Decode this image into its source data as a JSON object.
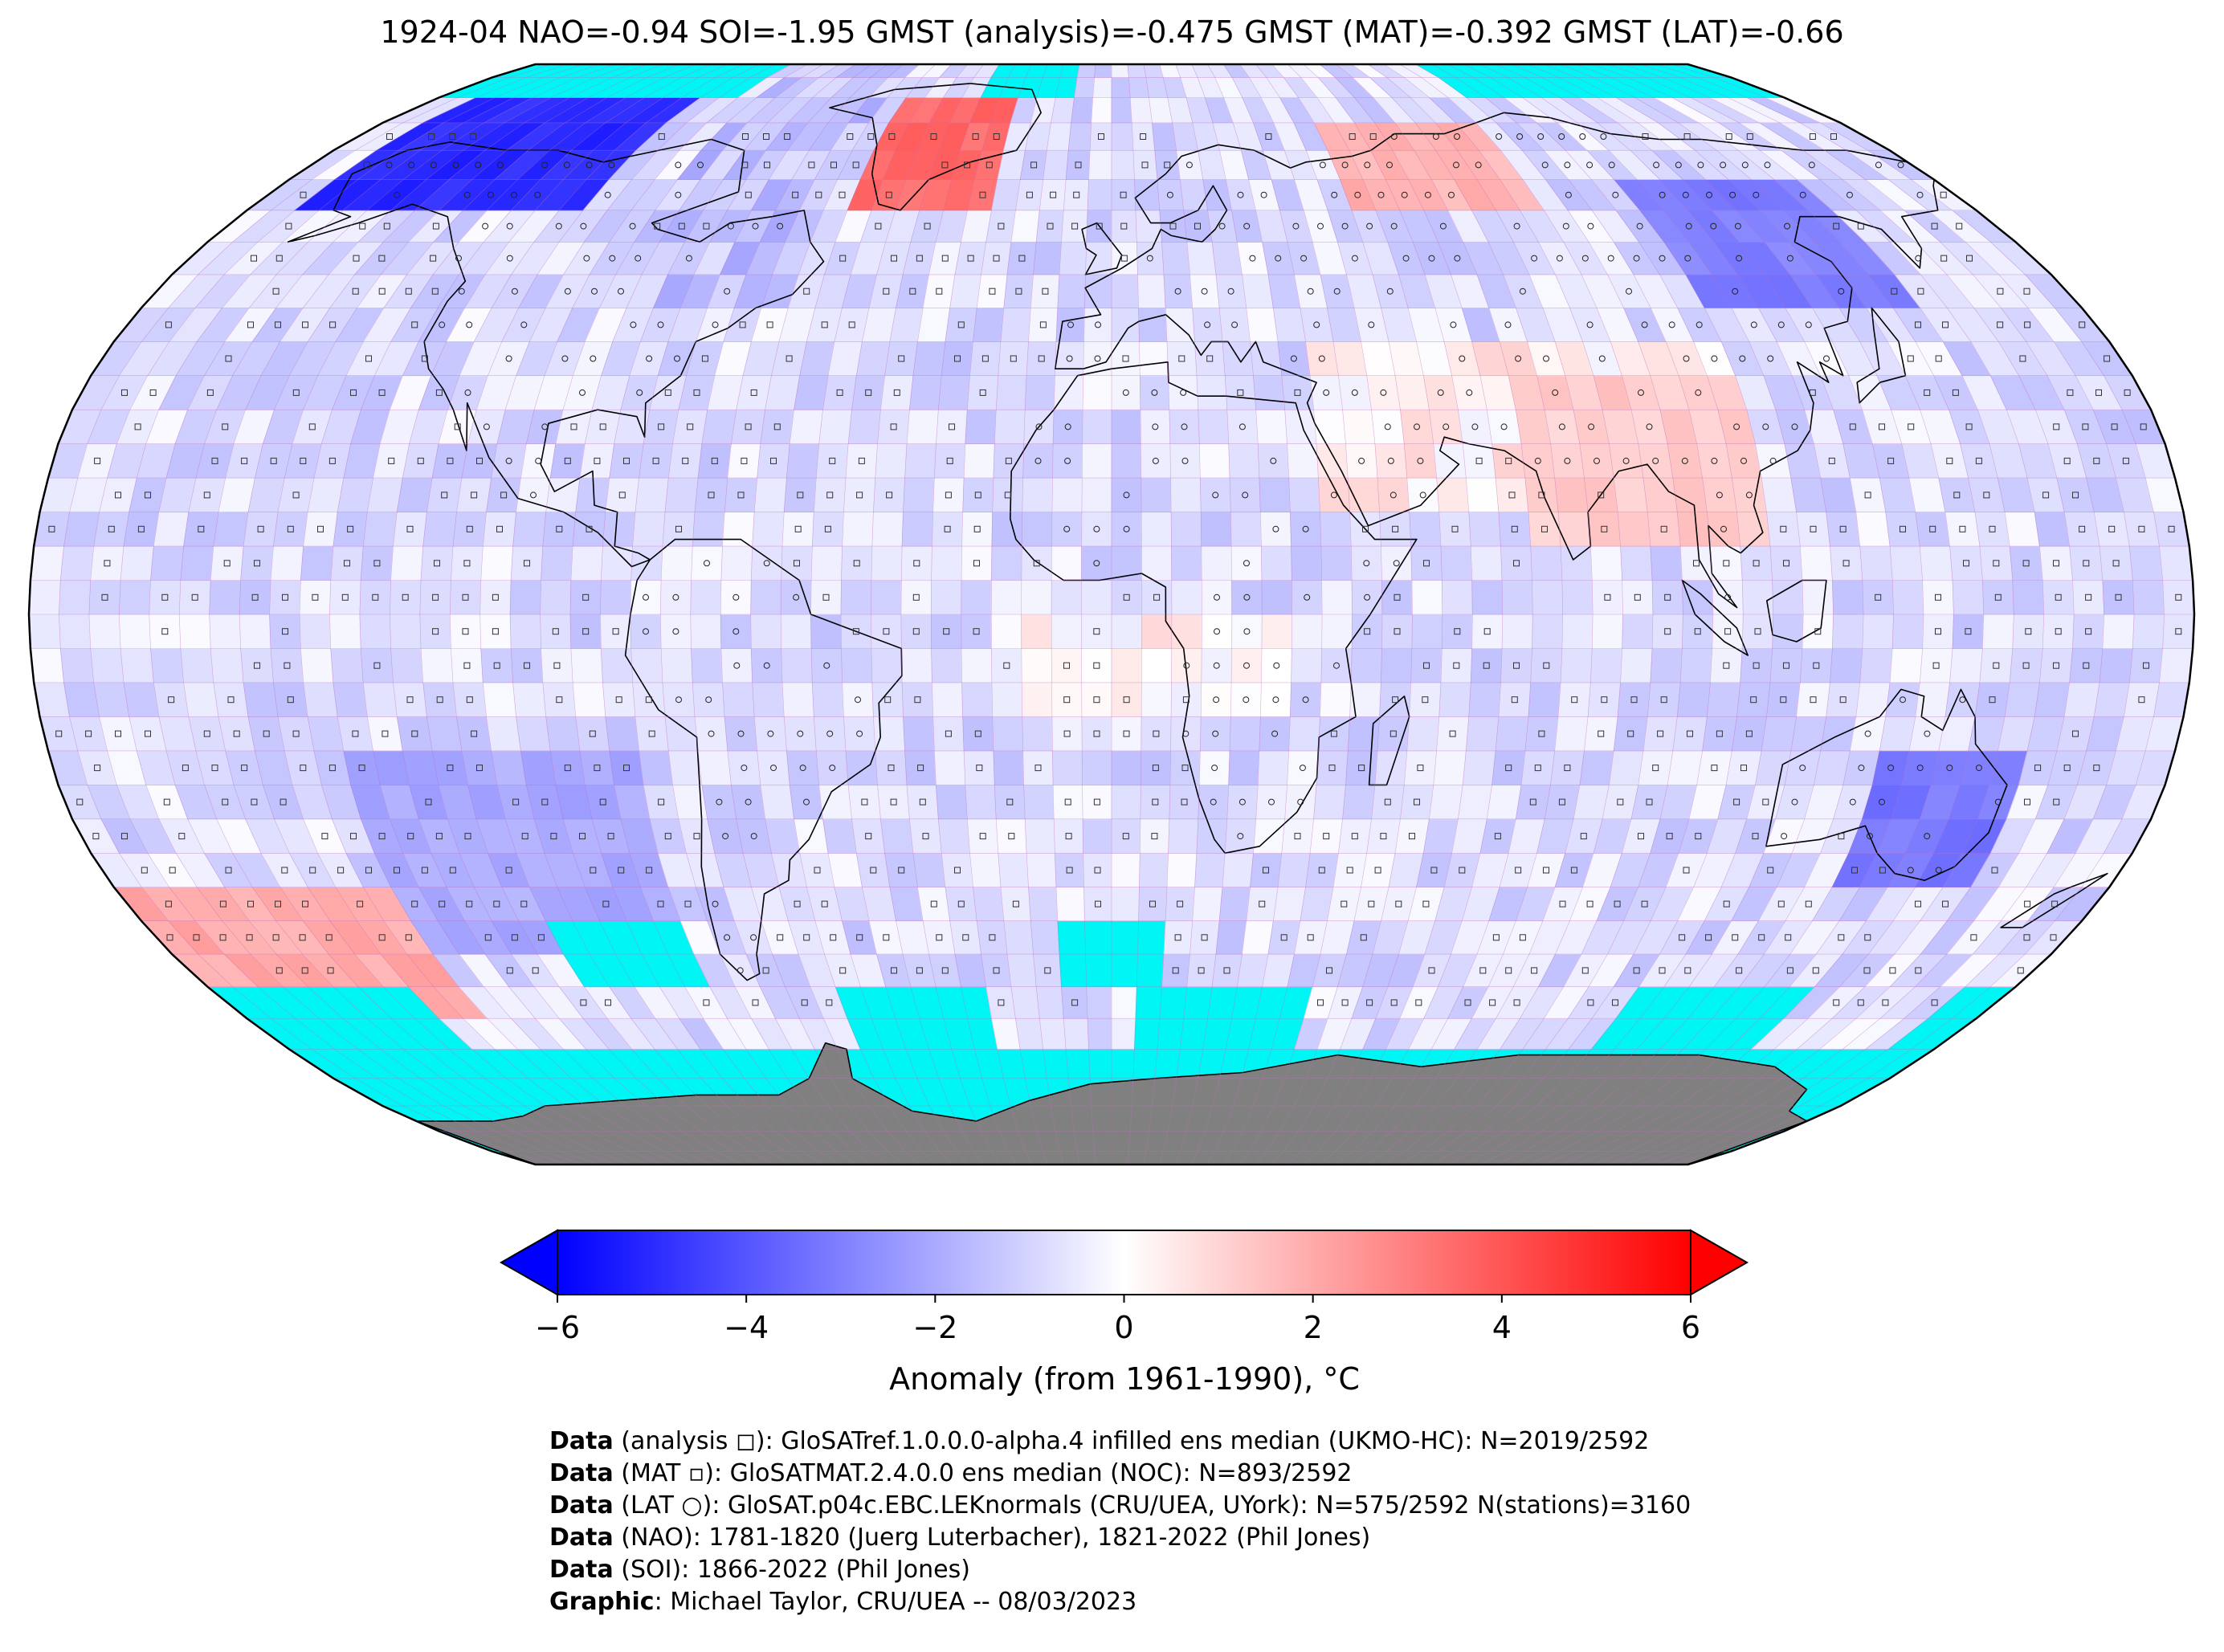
{
  "title": "1924-04 NAO=-0.94 SOI=-1.95 GMST (analysis)=-0.475 GMST (MAT)=-0.392 GMST (LAT)=-0.66",
  "colors": {
    "ocean_missing": "#00f5f5",
    "antarctica": "#808080",
    "grid_line": "#c070c0",
    "coast_line": "#000000",
    "cmap_min": "#0000ff",
    "cmap_mid": "#ffffff",
    "cmap_max": "#ff0000"
  },
  "colorbar": {
    "label": "Anomaly (from 1961-1990), °C",
    "ticks": [
      "−6",
      "−4",
      "−2",
      "0",
      "2",
      "4",
      "6"
    ],
    "tick_values": [
      -6,
      -4,
      -2,
      0,
      2,
      4,
      6
    ],
    "range": [
      -6,
      6
    ],
    "extend": "both"
  },
  "map": {
    "projection": "Robinson",
    "grid_resolution_deg": 5,
    "region_anomalies": [
      {
        "region": "Alaska / Beaufort",
        "lon": [
          -170,
          -110
        ],
        "lat": [
          60,
          80
        ],
        "anomaly": -5.0
      },
      {
        "region": "Greenland",
        "lon": [
          -55,
          -25
        ],
        "lat": [
          60,
          80
        ],
        "anomaly": 3.5
      },
      {
        "region": "Central Asia",
        "lon": [
          50,
          90
        ],
        "lat": [
          60,
          75
        ],
        "anomaly": 1.8
      },
      {
        "region": "East Siberia",
        "lon": [
          110,
          150
        ],
        "lat": [
          45,
          65
        ],
        "anomaly": -3.0
      },
      {
        "region": "Australia SE",
        "lon": [
          130,
          155
        ],
        "lat": [
          -40,
          -20
        ],
        "anomaly": -3.2
      },
      {
        "region": "India / Tibet",
        "lon": [
          70,
          110
        ],
        "lat": [
          10,
          35
        ],
        "anomaly": 1.2
      },
      {
        "region": "Southern Ocean Pacific",
        "lon": [
          -180,
          -130
        ],
        "lat": [
          -60,
          -40
        ],
        "anomaly": 2.0
      },
      {
        "region": "SE Pacific",
        "lon": [
          -130,
          -80
        ],
        "lat": [
          -50,
          -20
        ],
        "anomaly": -2.0
      }
    ]
  },
  "credits": [
    {
      "key": "Data",
      "text": " (analysis ◻): GloSATref.1.0.0.0-alpha.4 infilled ens median (UKMO-HC): N=2019/2592"
    },
    {
      "key": "Data",
      "text": " (MAT ▫): GloSATMAT.2.4.0.0 ens median (NOC): N=893/2592"
    },
    {
      "key": "Data",
      "text": " (LAT ○): GloSAT.p04c.EBC.LEKnormals (CRU/UEA, UYork): N=575/2592 N(stations)=3160"
    },
    {
      "key": "Data",
      "text": " (NAO): 1781-1820 (Juerg Luterbacher), 1821-2022 (Phil Jones)"
    },
    {
      "key": "Data",
      "text": " (SOI): 1866-2022 (Phil Jones)"
    },
    {
      "key": "Graphic",
      "text": ": Michael Taylor, CRU/UEA -- 08/03/2023"
    }
  ]
}
